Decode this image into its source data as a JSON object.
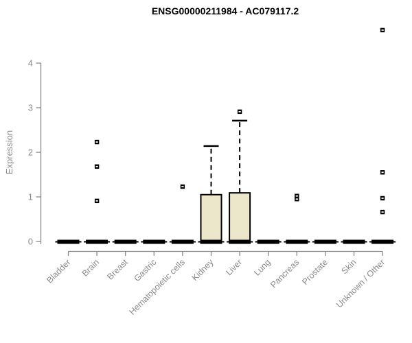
{
  "chart_data": {
    "type": "boxplot",
    "title": "ENSG00000211984 - AC079117.2",
    "ylabel": "Expression",
    "xlabel": "",
    "ylim": [
      0,
      4
    ],
    "yticks": [
      0,
      1,
      2,
      3,
      4
    ],
    "grid": false,
    "legend": null,
    "categories": [
      "Bladder",
      "Brain",
      "Breast",
      "Gastric",
      "Hematopoietic cells",
      "Kidney",
      "Liver",
      "Lung",
      "Pancreas",
      "Prostate",
      "Skin",
      "Unknown / Other"
    ],
    "boxes": [
      {
        "category": "Bladder",
        "whisker_low": 0,
        "q1": 0,
        "median": 0,
        "q3": 0,
        "whisker_high": 0,
        "outliers": []
      },
      {
        "category": "Brain",
        "whisker_low": 0,
        "q1": 0,
        "median": 0,
        "q3": 0,
        "whisker_high": 0,
        "outliers": [
          2.23,
          1.68,
          0.91
        ]
      },
      {
        "category": "Breast",
        "whisker_low": 0,
        "q1": 0,
        "median": 0,
        "q3": 0,
        "whisker_high": 0,
        "outliers": []
      },
      {
        "category": "Gastric",
        "whisker_low": 0,
        "q1": 0,
        "median": 0,
        "q3": 0,
        "whisker_high": 0,
        "outliers": []
      },
      {
        "category": "Hematopoietic cells",
        "whisker_low": 0,
        "q1": 0,
        "median": 0,
        "q3": 0,
        "whisker_high": 0,
        "outliers": [
          1.23
        ]
      },
      {
        "category": "Kidney",
        "whisker_low": 0,
        "q1": 0,
        "median": 0,
        "q3": 1.05,
        "whisker_high": 2.14,
        "outliers": []
      },
      {
        "category": "Liver",
        "whisker_low": 0,
        "q1": 0,
        "median": 0,
        "q3": 1.09,
        "whisker_high": 2.71,
        "outliers": [
          2.91
        ]
      },
      {
        "category": "Lung",
        "whisker_low": 0,
        "q1": 0,
        "median": 0,
        "q3": 0,
        "whisker_high": 0,
        "outliers": []
      },
      {
        "category": "Pancreas",
        "whisker_low": 0,
        "q1": 0,
        "median": 0,
        "q3": 0,
        "whisker_high": 0,
        "outliers": [
          1.02,
          0.95
        ]
      },
      {
        "category": "Prostate",
        "whisker_low": 0,
        "q1": 0,
        "median": 0,
        "q3": 0,
        "whisker_high": 0,
        "outliers": []
      },
      {
        "category": "Skin",
        "whisker_low": 0,
        "q1": 0,
        "median": 0,
        "q3": 0,
        "whisker_high": 0,
        "outliers": []
      },
      {
        "category": "Unknown / Other",
        "whisker_low": 0,
        "q1": 0,
        "median": 0,
        "q3": 0,
        "whisker_high": 0,
        "outliers": [
          4.74,
          1.55,
          0.97,
          0.66
        ]
      }
    ],
    "colors": {
      "background": "#FFFFFF",
      "box_fill": "#ECE7CB",
      "box_stroke": "#000000",
      "median": "#000000",
      "outlier": "#000000",
      "axis": "#888888",
      "tick_label": "#8A8A8A",
      "title": "#000000"
    }
  }
}
